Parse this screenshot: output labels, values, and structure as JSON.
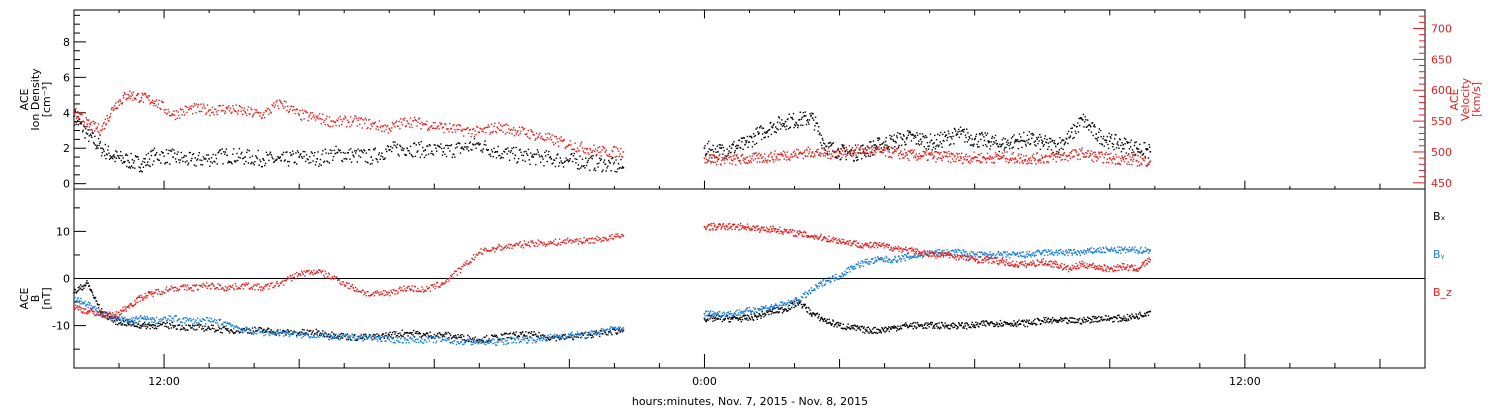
{
  "xaxis": {
    "label": "hours:minutes, Nov.  7, 2015 - Nov.  8, 2015",
    "ticks": [
      {
        "hour": 12,
        "label": "12:00"
      },
      {
        "hour": 24,
        "label": "0:00"
      },
      {
        "hour": 36,
        "label": "12:00"
      }
    ],
    "range_hours": [
      10,
      40
    ]
  },
  "colors": {
    "black": "#000000",
    "red": "#e0201e",
    "blue": "#1a7fd4"
  },
  "chart_data": [
    {
      "type": "scatter",
      "panel": "top",
      "ylabel_left": [
        "ACE",
        "Ion Density",
        "[cm⁻³]"
      ],
      "ylabel_right": [
        "ACE",
        "Velocity",
        "[km/s]"
      ],
      "ylim_left": [
        -0.3,
        9.8
      ],
      "ylim_right": [
        440,
        730
      ],
      "left_ticks": [
        "0",
        "2",
        "4",
        "6",
        "8"
      ],
      "right_ticks": [
        "450",
        "500",
        "550",
        "600",
        "650",
        "700"
      ],
      "series": [
        {
          "axis": "left",
          "color": "black",
          "x": [
            10.0,
            10.3,
            10.6,
            10.9,
            11.2,
            11.5,
            11.8,
            12.2,
            12.6,
            13.0,
            13.4,
            13.8,
            14.2,
            14.6,
            15.0,
            15.4,
            15.8,
            16.2,
            16.6,
            17.0,
            17.4,
            17.8,
            18.2,
            18.6,
            19.0,
            19.4,
            19.8,
            20.2,
            20.6,
            21.0,
            21.4,
            21.8,
            22.2,
            24.0,
            24.3,
            24.6,
            24.9,
            25.2,
            25.5,
            25.8,
            26.1,
            26.4,
            26.7,
            27.0,
            27.3,
            27.6,
            27.9,
            28.2,
            28.5,
            28.8,
            29.1,
            29.4,
            29.7,
            30.0,
            30.3,
            30.6,
            30.9,
            31.2,
            31.5,
            31.8,
            32.1,
            32.4,
            32.7,
            33.0,
            33.3,
            33.6,
            33.9
          ],
          "y": [
            3.8,
            2.8,
            2.0,
            1.5,
            1.3,
            1.1,
            1.6,
            1.5,
            1.3,
            1.4,
            1.6,
            1.5,
            1.4,
            1.3,
            1.5,
            1.4,
            1.7,
            1.6,
            1.5,
            1.9,
            2.0,
            1.9,
            1.8,
            2.0,
            2.2,
            1.8,
            1.6,
            1.5,
            1.4,
            1.3,
            1.2,
            1.1,
            0.9,
            2.0,
            1.8,
            2.0,
            2.2,
            2.8,
            3.2,
            3.5,
            3.6,
            3.7,
            2.1,
            1.8,
            1.7,
            1.9,
            2.2,
            2.4,
            2.6,
            2.5,
            2.3,
            2.6,
            2.8,
            2.5,
            2.4,
            2.2,
            2.4,
            2.5,
            2.3,
            2.1,
            2.6,
            3.6,
            2.8,
            2.4,
            2.2,
            2.0,
            1.8
          ]
        },
        {
          "axis": "right",
          "color": "red",
          "x": [
            10.0,
            10.3,
            10.6,
            10.9,
            11.2,
            11.5,
            11.8,
            12.2,
            12.6,
            13.0,
            13.4,
            13.8,
            14.2,
            14.6,
            15.0,
            15.4,
            15.8,
            16.2,
            16.6,
            17.0,
            17.4,
            17.8,
            18.2,
            18.6,
            19.0,
            19.4,
            19.8,
            20.2,
            20.6,
            21.0,
            21.4,
            21.8,
            22.2,
            24.0,
            24.3,
            24.6,
            24.9,
            25.2,
            25.5,
            25.8,
            26.1,
            26.4,
            26.7,
            27.0,
            27.3,
            27.6,
            27.9,
            28.2,
            28.5,
            28.8,
            29.1,
            29.4,
            29.7,
            30.0,
            30.3,
            30.6,
            30.9,
            31.2,
            31.5,
            31.8,
            32.1,
            32.4,
            32.7,
            33.0,
            33.3,
            33.6,
            33.9
          ],
          "y": [
            565,
            545,
            535,
            575,
            593,
            588,
            582,
            560,
            570,
            568,
            570,
            565,
            560,
            580,
            560,
            555,
            548,
            550,
            545,
            538,
            550,
            545,
            540,
            535,
            532,
            540,
            535,
            528,
            520,
            512,
            505,
            500,
            500,
            490,
            488,
            487,
            488,
            490,
            492,
            495,
            497,
            500,
            497,
            499,
            502,
            503,
            500,
            499,
            495,
            494,
            493,
            492,
            490,
            491,
            490,
            492,
            490,
            489,
            490,
            492,
            494,
            498,
            492,
            490,
            488,
            486,
            485
          ]
        }
      ]
    },
    {
      "type": "scatter",
      "panel": "bottom",
      "ylabel_left": [
        "ACE",
        "B",
        "[nT]"
      ],
      "ylim": [
        -19,
        19
      ],
      "left_ticks": [
        "-10",
        "0",
        "10"
      ],
      "legend": [
        "Bₓ",
        "Bᵧ",
        "B_z"
      ],
      "legend_colors": [
        "black",
        "blue",
        "red"
      ],
      "series": [
        {
          "name": "Bₓ",
          "color": "black",
          "x": [
            10.0,
            10.3,
            10.6,
            10.9,
            11.2,
            11.5,
            11.8,
            12.2,
            12.6,
            13.0,
            13.4,
            13.8,
            14.2,
            14.6,
            15.0,
            15.4,
            15.8,
            16.2,
            16.6,
            17.0,
            17.4,
            17.8,
            18.2,
            18.6,
            19.0,
            19.4,
            19.8,
            20.2,
            20.6,
            21.0,
            21.4,
            21.8,
            22.2,
            24.0,
            24.3,
            24.6,
            24.9,
            25.2,
            25.5,
            25.8,
            26.1,
            26.4,
            26.7,
            27.0,
            27.3,
            27.6,
            27.9,
            28.2,
            28.5,
            28.8,
            29.1,
            29.4,
            29.7,
            30.0,
            30.3,
            30.6,
            30.9,
            31.2,
            31.5,
            31.8,
            32.1,
            32.4,
            32.7,
            33.0,
            33.3,
            33.6,
            33.9
          ],
          "y": [
            -3,
            -1,
            -7,
            -9,
            -9.5,
            -10,
            -10,
            -10,
            -10.5,
            -10.5,
            -11,
            -11,
            -11,
            -11.5,
            -11.5,
            -11.5,
            -12,
            -12.5,
            -12.5,
            -12,
            -11.5,
            -12,
            -12,
            -12.5,
            -13,
            -12.5,
            -12,
            -12,
            -12.5,
            -12.5,
            -12,
            -11.5,
            -11,
            -8.5,
            -8.5,
            -8.5,
            -8.5,
            -8,
            -7,
            -6.5,
            -5,
            -7.5,
            -9,
            -10,
            -10.5,
            -11,
            -11,
            -10.5,
            -10,
            -10,
            -10,
            -10,
            -10,
            -10,
            -9.5,
            -9.5,
            -9.5,
            -9.5,
            -9,
            -9,
            -9,
            -9,
            -8.5,
            -8.5,
            -8.5,
            -8,
            -7
          ]
        },
        {
          "name": "Bᵧ",
          "color": "blue",
          "x": [
            10.0,
            10.3,
            10.6,
            10.9,
            11.2,
            11.5,
            11.8,
            12.2,
            12.6,
            13.0,
            13.4,
            13.8,
            14.2,
            14.6,
            15.0,
            15.4,
            15.8,
            16.2,
            16.6,
            17.0,
            17.4,
            17.8,
            18.2,
            18.6,
            19.0,
            19.4,
            19.8,
            20.2,
            20.6,
            21.0,
            21.4,
            21.8,
            22.2,
            24.0,
            24.3,
            24.6,
            24.9,
            25.2,
            25.5,
            25.8,
            26.1,
            26.4,
            26.7,
            27.0,
            27.3,
            27.6,
            27.9,
            28.2,
            28.5,
            28.8,
            29.1,
            29.4,
            29.7,
            30.0,
            30.3,
            30.6,
            30.9,
            31.2,
            31.5,
            31.8,
            32.1,
            32.4,
            32.7,
            33.0,
            33.3,
            33.6,
            33.9
          ],
          "y": [
            -4,
            -5.5,
            -7.5,
            -8.5,
            -9,
            -8.5,
            -9,
            -8.5,
            -9,
            -9,
            -9.5,
            -11,
            -11.5,
            -11.5,
            -12,
            -12,
            -12.5,
            -12.5,
            -12.5,
            -13,
            -13,
            -13,
            -13,
            -13.5,
            -13.5,
            -13.5,
            -13,
            -13,
            -12.5,
            -12,
            -12,
            -11,
            -10.5,
            -7.5,
            -7.5,
            -7.5,
            -7,
            -6.5,
            -6,
            -5.5,
            -4.5,
            -2.5,
            -0.5,
            0.5,
            2.5,
            3.5,
            4,
            4,
            4.5,
            5,
            5.5,
            5.5,
            5.5,
            5,
            5,
            5,
            5,
            5,
            5.5,
            5.5,
            5.5,
            5.5,
            6,
            6,
            6,
            6,
            6
          ]
        },
        {
          "name": "B_z",
          "color": "red",
          "x": [
            10.0,
            10.3,
            10.6,
            10.9,
            11.2,
            11.5,
            11.8,
            12.2,
            12.6,
            13.0,
            13.4,
            13.8,
            14.2,
            14.6,
            15.0,
            15.4,
            15.8,
            16.2,
            16.6,
            17.0,
            17.4,
            17.8,
            18.2,
            18.6,
            19.0,
            19.4,
            19.8,
            20.2,
            20.6,
            21.0,
            21.4,
            21.8,
            22.2,
            24.0,
            24.3,
            24.6,
            24.9,
            25.2,
            25.5,
            25.8,
            26.1,
            26.4,
            26.7,
            27.0,
            27.3,
            27.6,
            27.9,
            28.2,
            28.5,
            28.8,
            29.1,
            29.4,
            29.7,
            30.0,
            30.3,
            30.6,
            30.9,
            31.2,
            31.5,
            31.8,
            32.1,
            32.4,
            32.7,
            33.0,
            33.3,
            33.6,
            33.9
          ],
          "y": [
            -6,
            -7,
            -7.5,
            -8,
            -6,
            -4,
            -3,
            -2,
            -2,
            -1.5,
            -2,
            -1.5,
            -2,
            -1,
            1,
            1.5,
            0,
            -2,
            -3.5,
            -3,
            -2,
            -2.5,
            -1,
            2,
            5.5,
            6.5,
            7,
            7.5,
            7.5,
            8,
            8,
            8.5,
            9,
            11,
            11,
            11,
            11,
            10.5,
            10.5,
            10,
            9.5,
            9,
            8.5,
            8,
            7.5,
            7,
            7,
            6.5,
            6,
            5.5,
            5,
            5,
            4.5,
            4,
            4,
            3.5,
            3,
            3,
            3.5,
            3,
            2,
            3,
            2.5,
            2,
            2.5,
            2,
            4
          ]
        }
      ]
    }
  ]
}
